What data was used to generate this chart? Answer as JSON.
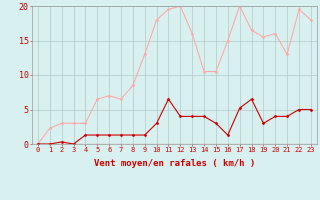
{
  "x": [
    0,
    1,
    2,
    3,
    4,
    5,
    6,
    7,
    8,
    9,
    10,
    11,
    12,
    13,
    14,
    15,
    16,
    17,
    18,
    19,
    20,
    21,
    22,
    23
  ],
  "vent_moyen": [
    0.0,
    0.0,
    0.3,
    0.0,
    1.3,
    1.3,
    1.3,
    1.3,
    1.3,
    1.3,
    3.0,
    6.5,
    4.0,
    4.0,
    4.0,
    3.0,
    1.3,
    5.2,
    6.5,
    3.0,
    4.0,
    4.0,
    5.0,
    5.0
  ],
  "rafales": [
    0.0,
    2.3,
    3.0,
    3.0,
    3.0,
    6.5,
    7.0,
    6.5,
    8.5,
    13.0,
    18.0,
    19.5,
    20.0,
    16.0,
    10.5,
    10.5,
    15.0,
    20.0,
    16.5,
    15.5,
    16.0,
    13.0,
    19.5,
    18.0
  ],
  "line_color_moyen": "#cc0000",
  "line_color_rafales": "#ffaaaa",
  "bg_color": "#d8f0f0",
  "grid_color": "#b0c8c8",
  "xlabel": "Vent moyen/en rafales ( km/h )",
  "xlabel_color": "#cc0000",
  "tick_color": "#cc0000",
  "ylim": [
    0,
    20
  ],
  "yticks": [
    0,
    5,
    10,
    15,
    20
  ],
  "marker_size": 1.5,
  "linewidth": 0.8,
  "tick_fontsize": 5.0,
  "xlabel_fontsize": 6.5
}
